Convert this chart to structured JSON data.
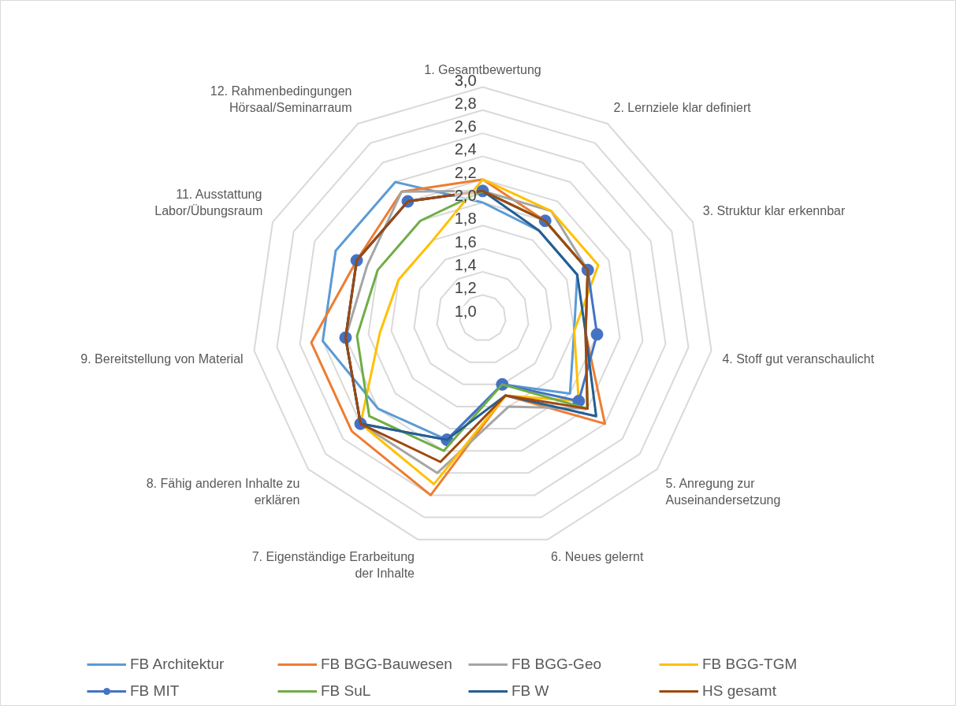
{
  "chart_data": {
    "type": "radar",
    "categories": [
      "1. Gesamtbewertung",
      "2. Lernziele klar definiert",
      "3. Struktur klar erkennbar",
      "4. Stoff gut veranschaulicht",
      "5. Anregung zur Auseinandersetzung",
      "6. Neues gelernt",
      "7. Eigenständige Erarbeitung der Inhalte",
      "8. Fähig anderen Inhalte zu erklären",
      "9. Bereitstellung von Material",
      "11. Ausstattung Labor/Übungsraum",
      "12. Rahmenbedingungen Hörsaal/Seminarraum"
    ],
    "ylim": [
      1.0,
      3.0
    ],
    "yticks": [
      {
        "value": 1.0,
        "label": "1,0"
      },
      {
        "value": 1.2,
        "label": "1,2"
      },
      {
        "value": 1.4,
        "label": "1,4"
      },
      {
        "value": 1.6,
        "label": "1,6"
      },
      {
        "value": 1.8,
        "label": "1,8"
      },
      {
        "value": 2.0,
        "label": "2,0"
      },
      {
        "value": 2.2,
        "label": "2,2"
      },
      {
        "value": 2.4,
        "label": "2,4"
      },
      {
        "value": 2.6,
        "label": "2,6"
      },
      {
        "value": 2.8,
        "label": "2,8"
      },
      {
        "value": 3.0,
        "label": "3,0"
      }
    ],
    "grid": true,
    "legend": "bottom",
    "series": [
      {
        "name": "FB Architektur",
        "color": "#5b9bd5",
        "values": [
          2.0,
          1.9,
          1.9,
          1.8,
          2.0,
          1.6,
          2.1,
          2.2,
          2.4,
          2.4,
          2.4
        ]
      },
      {
        "name": "FB BGG-Bauwesen",
        "color": "#ed7d31",
        "values": [
          2.2,
          2.0,
          2.0,
          1.9,
          2.4,
          1.7,
          2.6,
          2.5,
          2.5,
          2.2,
          2.3
        ]
      },
      {
        "name": "FB BGG-Geo",
        "color": "#a5a5a5",
        "values": [
          2.1,
          2.1,
          2.0,
          1.9,
          2.2,
          1.8,
          2.4,
          2.4,
          2.2,
          2.1,
          2.3
        ]
      },
      {
        "name": "FB BGG-TGM",
        "color": "#ffc000",
        "values": [
          2.2,
          2.1,
          2.1,
          1.8,
          2.1,
          1.7,
          2.5,
          2.4,
          1.9,
          1.8,
          1.8
        ]
      },
      {
        "name": "FB MIT",
        "color": "#4472c4",
        "marker": "circle",
        "values": [
          2.1,
          2.0,
          2.0,
          2.0,
          2.1,
          1.6,
          2.1,
          2.4,
          2.2,
          2.2,
          2.2
        ]
      },
      {
        "name": "FB SuL",
        "color": "#70ad47",
        "values": [
          2.1,
          2.0,
          2.0,
          1.9,
          2.2,
          1.6,
          2.2,
          2.3,
          2.1,
          2.0,
          2.0
        ]
      },
      {
        "name": "FB W",
        "color": "#255e91",
        "values": [
          2.1,
          1.9,
          1.9,
          1.9,
          2.3,
          1.7,
          2.1,
          2.4,
          2.2,
          2.2,
          2.2
        ]
      },
      {
        "name": "HS gesamt",
        "color": "#9e480e",
        "values": [
          2.1,
          2.0,
          2.0,
          1.9,
          2.2,
          1.7,
          2.3,
          2.4,
          2.2,
          2.2,
          2.2
        ]
      }
    ]
  }
}
